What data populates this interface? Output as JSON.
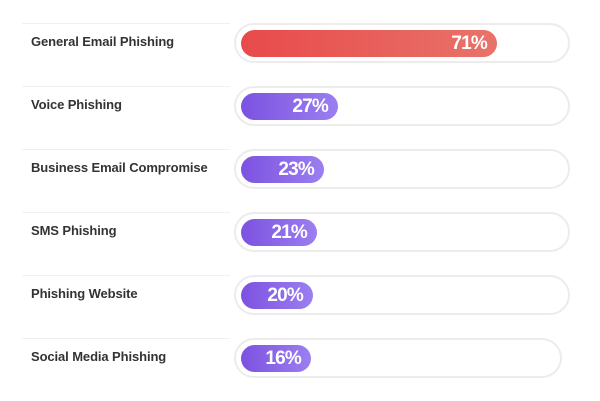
{
  "chart_data": {
    "type": "bar",
    "orientation": "horizontal",
    "categories": [
      "General Email Phishing",
      "Voice Phishing",
      "Business Email Compromise",
      "SMS Phishing",
      "Phishing Website",
      "Social Media Phishing"
    ],
    "values": [
      71,
      27,
      23,
      21,
      20,
      16
    ],
    "value_labels": [
      "71%",
      "27%",
      "23%",
      "21%",
      "20%",
      "16%"
    ],
    "unit": "%",
    "xlim": [
      0,
      100
    ],
    "colors": {
      "highlight_start": "#e84a4a",
      "highlight_end": "#e8736a",
      "bar_start": "#7c52e0",
      "bar_end": "#9b7ff0",
      "track_border": "#ececec",
      "label": "#333333"
    }
  }
}
